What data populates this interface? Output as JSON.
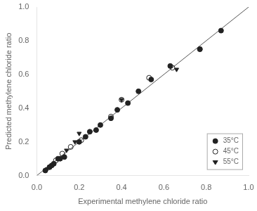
{
  "chart_data": {
    "type": "scatter",
    "xlabel": "Experimental methylene chloride ratio",
    "ylabel": "Predicted methylene chloride ratio",
    "xlim": [
      0.0,
      1.0
    ],
    "ylim": [
      0.0,
      1.0
    ],
    "xticks": [
      {
        "value": 0.0,
        "label": "0.0"
      },
      0.2,
      0.4,
      0.6,
      0.8,
      {
        "value": 1.0,
        "label": "1.0"
      }
    ],
    "yticks": [
      {
        "value": 0.0,
        "label": "0.0"
      },
      0.2,
      0.4,
      0.6,
      0.8,
      {
        "value": 1.0,
        "label": "1.0"
      }
    ],
    "grid": false,
    "legend": "lower right",
    "series": [
      {
        "type": "line",
        "color": "#555555",
        "x": [
          0,
          1
        ],
        "values": [
          0,
          1
        ]
      },
      {
        "name": "35°C",
        "color": "#222222",
        "marker": "circle",
        "x": [
          0.04,
          0.06,
          0.07,
          0.08,
          0.1,
          0.11,
          0.13,
          0.2,
          0.23,
          0.25,
          0.28,
          0.3,
          0.35,
          0.38,
          0.43,
          0.48,
          0.54,
          0.63,
          0.77,
          0.87
        ],
        "values": [
          0.03,
          0.05,
          0.06,
          0.07,
          0.1,
          0.1,
          0.11,
          0.2,
          0.23,
          0.26,
          0.27,
          0.3,
          0.34,
          0.39,
          0.43,
          0.5,
          0.57,
          0.65,
          0.75,
          0.86
        ]
      },
      {
        "name": "45°C",
        "color": "#222222",
        "marker": "open_circle",
        "x": [
          0.06,
          0.09,
          0.12,
          0.16,
          0.21,
          0.35,
          0.4,
          0.53,
          0.64,
          0.77
        ],
        "values": [
          0.05,
          0.09,
          0.13,
          0.17,
          0.21,
          0.35,
          0.45,
          0.58,
          0.64,
          0.75
        ]
      },
      {
        "name": "55°C",
        "color": "#222222",
        "marker": "triangle_down",
        "x": [
          0.05,
          0.08,
          0.14,
          0.18,
          0.2,
          0.4,
          0.66
        ],
        "values": [
          0.04,
          0.07,
          0.15,
          0.2,
          0.25,
          0.45,
          0.63
        ]
      }
    ]
  }
}
